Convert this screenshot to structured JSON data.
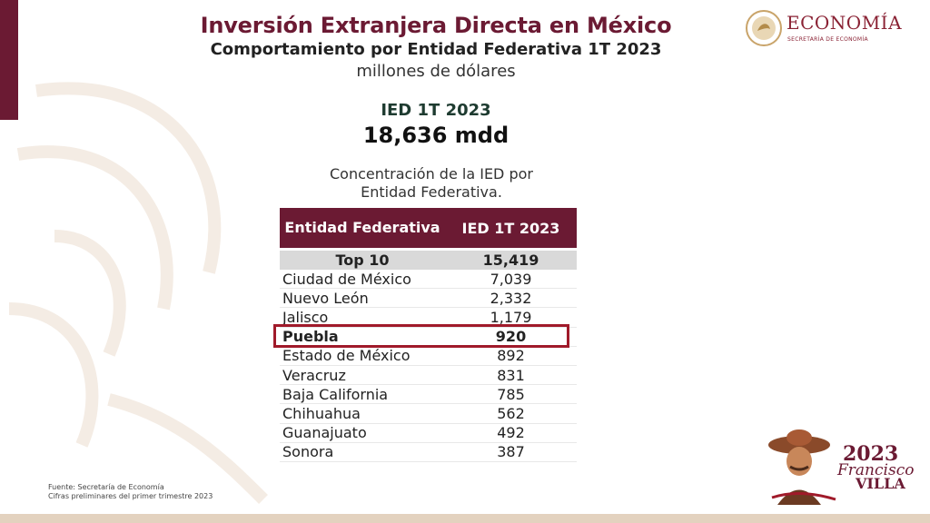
{
  "header": {
    "title": "Inversión Extranjera Directa en México",
    "subtitle": "Comportamiento por Entidad Federativa 1T 2023",
    "unit": "millones de dólares"
  },
  "summary": {
    "label": "IED 1T 2023",
    "value": "18,636 mdd"
  },
  "caption": {
    "line1": "Concentración de la IED por",
    "line2": "Entidad Federativa."
  },
  "table": {
    "columns": [
      "Entidad Federativa",
      "IED 1T 2023"
    ],
    "top": {
      "label": "Top 10",
      "value": "15,419"
    },
    "rows": [
      {
        "entity": "Ciudad de México",
        "value": "7,039"
      },
      {
        "entity": "Nuevo León",
        "value": "2,332"
      },
      {
        "entity": "Jalisco",
        "value": "1,179"
      },
      {
        "entity": "Puebla",
        "value": "920"
      },
      {
        "entity": "Estado de México",
        "value": "892"
      },
      {
        "entity": "Veracruz",
        "value": "831"
      },
      {
        "entity": "Baja California",
        "value": "785"
      },
      {
        "entity": "Chihuahua",
        "value": "562"
      },
      {
        "entity": "Guanajuato",
        "value": "492"
      },
      {
        "entity": "Sonora",
        "value": "387"
      }
    ],
    "highlighted_entity": "Puebla"
  },
  "footnote": {
    "line1": "Fuente: Secretaría de Economía",
    "line2": "Cifras preliminares del primer trimestre 2023"
  },
  "logos": {
    "economia_text": "ECONOMÍA",
    "economia_sub": "SECRETARÍA DE ECONOMÍA",
    "villa_year": "2023",
    "villa_name1": "Francisco",
    "villa_name2": "VILLA"
  },
  "colors": {
    "accent": "#6b1a33",
    "highlight_border": "#a01a2a",
    "top_row_bg": "#d9d9d9"
  }
}
